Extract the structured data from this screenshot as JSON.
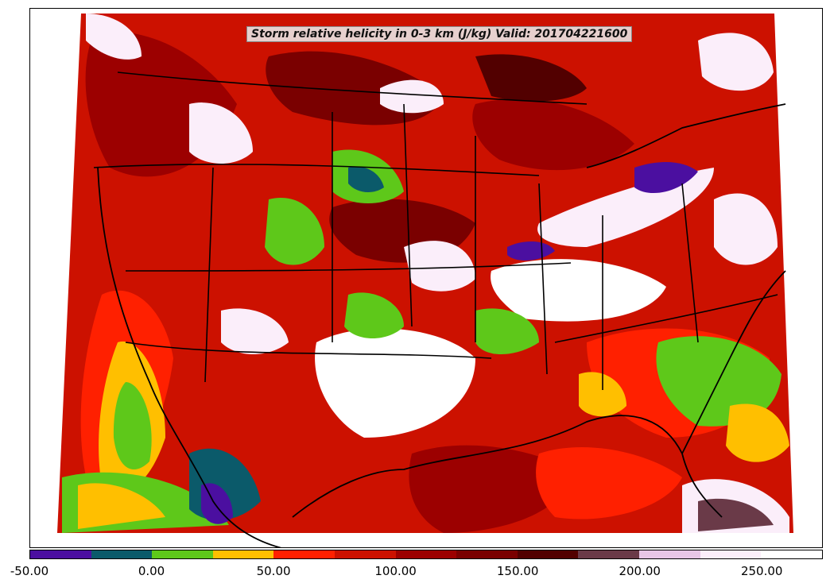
{
  "map": {
    "title": "Storm relative helicity in 0-3 km (J/kg) Valid: 201704221600",
    "background_color": "#ffffff",
    "outline_color": "#000000",
    "dominant_field_color": "#cc1100"
  },
  "colorbar": {
    "min": -50,
    "max": 275,
    "step": 25,
    "colors": [
      "#4b0fa0",
      "#0b5a6a",
      "#5ec81a",
      "#ffbf00",
      "#ff2000",
      "#cc1100",
      "#9c0000",
      "#7a0000",
      "#520000",
      "#6a3a48",
      "#e8c6e6",
      "#fbeefa",
      "#ffffff"
    ],
    "tick_labels": [
      "-50.00",
      "0.00",
      "50.00",
      "100.00",
      "150.00",
      "200.00",
      "250.00"
    ]
  }
}
